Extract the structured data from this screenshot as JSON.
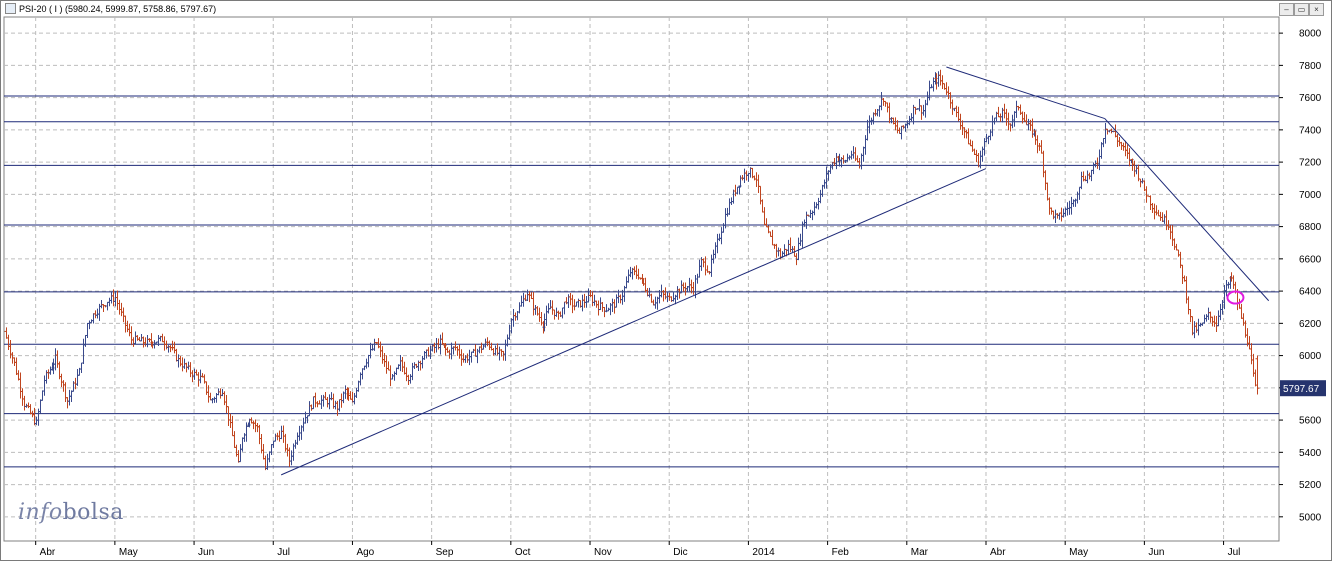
{
  "window": {
    "title": "PSI-20 ( I ) (5980.24, 5999.87, 5758.86, 5797.67)",
    "buttons": [
      "minimize-button",
      "restore-button",
      "close-button"
    ]
  },
  "watermark": {
    "part1": "info",
    "part2": "bolsa"
  },
  "colors": {
    "up": "#3a4a8c",
    "down": "#c0451f",
    "trend": "#1e2a78",
    "level": "#1e2a78",
    "grid": "#bdbdbd",
    "badge_bg": "#26346e",
    "marker": "#e01be0"
  },
  "chart_data": {
    "type": "ohlc",
    "title": "PSI-20 ( I )",
    "last_ohlc": {
      "open": 5980.24,
      "high": 5999.87,
      "low": 5758.86,
      "close": 5797.67
    },
    "last_price_label": "5797.67",
    "ylim": [
      4850,
      8100
    ],
    "y_ticks": [
      5000,
      5200,
      5400,
      5600,
      5800,
      6000,
      6200,
      6400,
      6600,
      6800,
      7000,
      7200,
      7400,
      7600,
      7800,
      8000
    ],
    "x_range": [
      0,
      16.1
    ],
    "months": [
      {
        "label": "Abr",
        "pos": 0.4
      },
      {
        "label": "May",
        "pos": 1.4
      },
      {
        "label": "Jun",
        "pos": 2.4
      },
      {
        "label": "Jul",
        "pos": 3.4
      },
      {
        "label": "Ago",
        "pos": 4.4
      },
      {
        "label": "Sep",
        "pos": 5.4
      },
      {
        "label": "Oct",
        "pos": 6.4
      },
      {
        "label": "Nov",
        "pos": 7.4
      },
      {
        "label": "Dic",
        "pos": 8.4
      },
      {
        "label": "2014",
        "pos": 9.4
      },
      {
        "label": "Feb",
        "pos": 10.4
      },
      {
        "label": "Mar",
        "pos": 11.4
      },
      {
        "label": "Abr",
        "pos": 12.4
      },
      {
        "label": "May",
        "pos": 13.4
      },
      {
        "label": "Jun",
        "pos": 14.4
      },
      {
        "label": "Jul",
        "pos": 15.4
      }
    ],
    "grid": true,
    "support_resistance_levels": [
      7610,
      7450,
      7180,
      6810,
      6395,
      6070,
      5640,
      5310
    ],
    "trendlines": [
      {
        "from": [
          3.5,
          5260
        ],
        "to": [
          12.4,
          7160
        ]
      },
      {
        "from": [
          11.9,
          7790
        ],
        "to": [
          13.9,
          7470
        ]
      },
      {
        "from": [
          13.9,
          7470
        ],
        "to": [
          15.97,
          6340
        ]
      }
    ],
    "marker_ellipse": {
      "x": 15.55,
      "y": 6360
    },
    "closes": [
      [
        0.0,
        6150
      ],
      [
        0.12,
        5950
      ],
      [
        0.25,
        5700
      ],
      [
        0.4,
        5580
      ],
      [
        0.5,
        5850
      ],
      [
        0.65,
        5980
      ],
      [
        0.8,
        5720
      ],
      [
        0.95,
        5900
      ],
      [
        1.05,
        6200
      ],
      [
        1.15,
        6270
      ],
      [
        1.3,
        6340
      ],
      [
        1.4,
        6360
      ],
      [
        1.5,
        6220
      ],
      [
        1.6,
        6100
      ],
      [
        1.8,
        6080
      ],
      [
        2.0,
        6100
      ],
      [
        2.1,
        6050
      ],
      [
        2.2,
        5970
      ],
      [
        2.35,
        5900
      ],
      [
        2.5,
        5850
      ],
      [
        2.6,
        5720
      ],
      [
        2.75,
        5790
      ],
      [
        2.85,
        5560
      ],
      [
        2.95,
        5320
      ],
      [
        3.0,
        5500
      ],
      [
        3.1,
        5620
      ],
      [
        3.2,
        5550
      ],
      [
        3.3,
        5300
      ],
      [
        3.4,
        5480
      ],
      [
        3.5,
        5520
      ],
      [
        3.6,
        5350
      ],
      [
        3.7,
        5520
      ],
      [
        3.8,
        5620
      ],
      [
        3.9,
        5720
      ],
      [
        4.1,
        5720
      ],
      [
        4.2,
        5680
      ],
      [
        4.3,
        5780
      ],
      [
        4.4,
        5700
      ],
      [
        4.5,
        5900
      ],
      [
        4.6,
        6000
      ],
      [
        4.7,
        6080
      ],
      [
        4.8,
        5950
      ],
      [
        4.9,
        5850
      ],
      [
        5.0,
        5950
      ],
      [
        5.1,
        5870
      ],
      [
        5.2,
        5950
      ],
      [
        5.3,
        6000
      ],
      [
        5.5,
        6080
      ],
      [
        5.6,
        6020
      ],
      [
        5.7,
        6050
      ],
      [
        5.8,
        5980
      ],
      [
        5.9,
        6000
      ],
      [
        6.0,
        6040
      ],
      [
        6.1,
        6080
      ],
      [
        6.2,
        6020
      ],
      [
        6.3,
        6000
      ],
      [
        6.4,
        6230
      ],
      [
        6.5,
        6300
      ],
      [
        6.6,
        6390
      ],
      [
        6.7,
        6280
      ],
      [
        6.8,
        6200
      ],
      [
        6.9,
        6300
      ],
      [
        7.0,
        6240
      ],
      [
        7.1,
        6350
      ],
      [
        7.2,
        6310
      ],
      [
        7.3,
        6330
      ],
      [
        7.4,
        6360
      ],
      [
        7.5,
        6310
      ],
      [
        7.6,
        6290
      ],
      [
        7.7,
        6320
      ],
      [
        7.8,
        6380
      ],
      [
        7.9,
        6520
      ],
      [
        8.0,
        6500
      ],
      [
        8.1,
        6420
      ],
      [
        8.2,
        6330
      ],
      [
        8.3,
        6380
      ],
      [
        8.4,
        6350
      ],
      [
        8.5,
        6400
      ],
      [
        8.6,
        6430
      ],
      [
        8.7,
        6420
      ],
      [
        8.8,
        6580
      ],
      [
        8.9,
        6530
      ],
      [
        9.0,
        6700
      ],
      [
        9.1,
        6870
      ],
      [
        9.2,
        7000
      ],
      [
        9.3,
        7100
      ],
      [
        9.4,
        7150
      ],
      [
        9.5,
        7100
      ],
      [
        9.6,
        6800
      ],
      [
        9.7,
        6700
      ],
      [
        9.8,
        6620
      ],
      [
        9.9,
        6680
      ],
      [
        10.0,
        6620
      ],
      [
        10.1,
        6850
      ],
      [
        10.2,
        6900
      ],
      [
        10.3,
        7000
      ],
      [
        10.4,
        7150
      ],
      [
        10.5,
        7230
      ],
      [
        10.6,
        7200
      ],
      [
        10.7,
        7250
      ],
      [
        10.8,
        7180
      ],
      [
        10.9,
        7420
      ],
      [
        11.0,
        7520
      ],
      [
        11.1,
        7600
      ],
      [
        11.2,
        7450
      ],
      [
        11.3,
        7380
      ],
      [
        11.4,
        7450
      ],
      [
        11.5,
        7550
      ],
      [
        11.6,
        7520
      ],
      [
        11.7,
        7680
      ],
      [
        11.8,
        7720
      ],
      [
        11.9,
        7650
      ],
      [
        12.0,
        7520
      ],
      [
        12.1,
        7420
      ],
      [
        12.2,
        7300
      ],
      [
        12.3,
        7200
      ],
      [
        12.4,
        7350
      ],
      [
        12.5,
        7470
      ],
      [
        12.6,
        7500
      ],
      [
        12.7,
        7440
      ],
      [
        12.8,
        7550
      ],
      [
        12.9,
        7430
      ],
      [
        13.0,
        7380
      ],
      [
        13.1,
        7250
      ],
      [
        13.2,
        6900
      ],
      [
        13.3,
        6850
      ],
      [
        13.4,
        6900
      ],
      [
        13.5,
        6950
      ],
      [
        13.6,
        7100
      ],
      [
        13.7,
        7120
      ],
      [
        13.8,
        7200
      ],
      [
        13.9,
        7420
      ],
      [
        14.0,
        7380
      ],
      [
        14.1,
        7300
      ],
      [
        14.2,
        7220
      ],
      [
        14.3,
        7150
      ],
      [
        14.4,
        7030
      ],
      [
        14.5,
        6930
      ],
      [
        14.6,
        6860
      ],
      [
        14.7,
        6820
      ],
      [
        14.8,
        6650
      ],
      [
        14.9,
        6450
      ],
      [
        15.0,
        6150
      ],
      [
        15.1,
        6180
      ],
      [
        15.2,
        6250
      ],
      [
        15.3,
        6200
      ],
      [
        15.4,
        6400
      ],
      [
        15.5,
        6480
      ],
      [
        15.6,
        6280
      ],
      [
        15.7,
        6100
      ],
      [
        15.75,
        5950
      ],
      [
        15.8,
        5797.67
      ]
    ]
  }
}
